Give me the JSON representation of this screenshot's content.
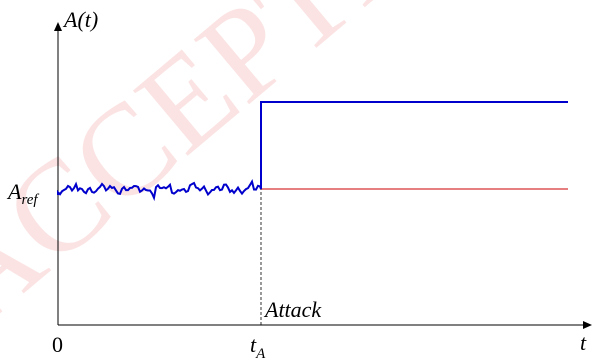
{
  "chart_data": {
    "type": "line",
    "ylabel": "A(t)",
    "xlabel": "t",
    "ylim": [
      0,
      1.0
    ],
    "x_ticks": [
      {
        "value": 0,
        "label": "0"
      },
      {
        "value": 1,
        "label": "t_A"
      }
    ],
    "y_ticks": [
      {
        "value": 0.5,
        "label": "A_ref"
      }
    ],
    "annotation": "Attack",
    "watermark": "ACCEPTED",
    "series": [
      {
        "color": "#0000cc",
        "style": "noisy-then-step",
        "pre_attack_level": 0.5,
        "post_attack_level": 0.82,
        "step_at": 1
      },
      {
        "color": "#cc0000",
        "style": "flat",
        "level": 0.5,
        "from": 1,
        "to": 2.6
      }
    ],
    "colors": {
      "axis": "#000000",
      "signal": "#0000cc",
      "reference": "#cc0000",
      "watermark": "#fbe3e3"
    }
  }
}
